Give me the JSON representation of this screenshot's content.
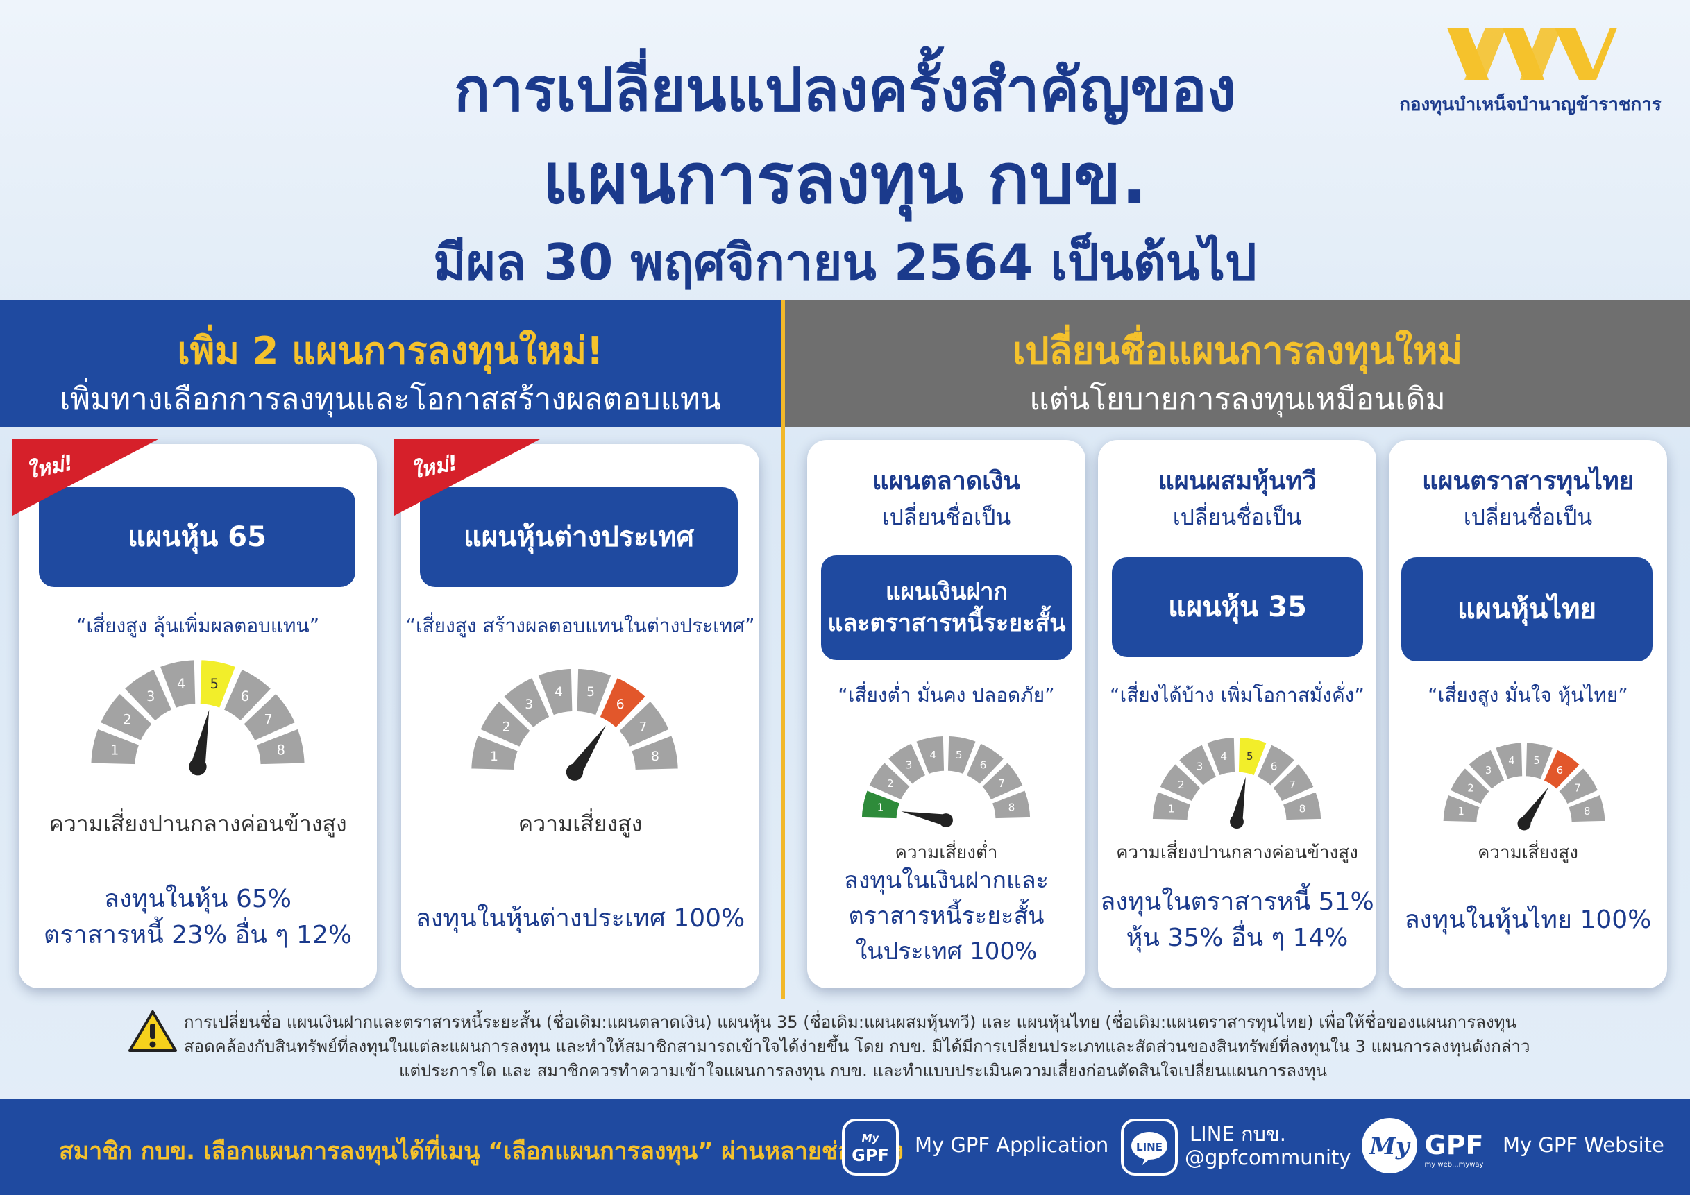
{
  "header": {
    "title_line1": "การเปลี่ยนแปลงครั้งสำคัญของ",
    "title_line2": "แผนการลงทุน กบข.",
    "title_line3": "มีผล 30 พฤศจิกายน 2564 เป็นต้นไป",
    "logo_text": "กองทุนบำเหน็จบำนาญข้าราชการ"
  },
  "left_section": {
    "heading": "เพิ่ม 2 แผนการลงทุนใหม่!",
    "subheading": "เพิ่มทางเลือกการลงทุนและโอกาสสร้างผลตอบแทน"
  },
  "right_section": {
    "heading": "เปลี่ยนชื่อแผนการลงทุนใหม่",
    "subheading": "แต่นโยบายการลงทุนเหมือนเดิม"
  },
  "new_badge": "ใหม่!",
  "rename_subtitle": "เปลี่ยนชื่อเป็น",
  "gauge_levels": [
    "1",
    "2",
    "3",
    "4",
    "5",
    "6",
    "7",
    "8"
  ],
  "colors": {
    "primary": "#1f4aa0",
    "accent": "#f5c22c",
    "gray_band": "#6f6f6f",
    "level_low": "#2e8b3a",
    "level_mid": "#f2ee2a",
    "level_high": "#e2572b",
    "ribbon": "#d6202a"
  },
  "new_plans": [
    {
      "name": "แผนหุ้น 65",
      "quote": "“เสี่ยงสูง ลุ้นเพิ่มผลตอบแทน”",
      "risk_level": 5,
      "risk_label": "ความเสี่ยงปานกลางค่อนข้างสูง",
      "allocation": [
        "ลงทุนในหุ้น 65%",
        "ตราสารหนี้ 23% อื่น ๆ 12%"
      ]
    },
    {
      "name": "แผนหุ้นต่างประเทศ",
      "quote": "“เสี่ยงสูง สร้างผลตอบแทนในต่างประเทศ”",
      "risk_level": 6,
      "risk_label": "ความเสี่ยงสูง",
      "allocation": [
        "ลงทุนในหุ้นต่างประเทศ 100%"
      ]
    }
  ],
  "renamed_plans": [
    {
      "old_name": "แผนตลาดเงิน",
      "new_name": [
        "แผนเงินฝาก",
        "และตราสารหนี้ระยะสั้น"
      ],
      "quote": "“เสี่ยงต่ำ มั่นคง ปลอดภัย”",
      "risk_level": 1,
      "risk_label": "ความเสี่ยงต่ำ",
      "allocation": [
        "ลงทุนในเงินฝากและ",
        "ตราสารหนี้ระยะสั้น",
        "ในประเทศ 100%"
      ]
    },
    {
      "old_name": "แผนผสมหุ้นทวี",
      "new_name": [
        "แผนหุ้น 35"
      ],
      "quote": "“เสี่ยงได้บ้าง เพิ่มโอกาสมั่งคั่ง”",
      "risk_level": 5,
      "risk_label": "ความเสี่ยงปานกลางค่อนข้างสูง",
      "allocation": [
        "ลงทุนในตราสารหนี้ 51%",
        "หุ้น 35% อื่น ๆ 14%"
      ]
    },
    {
      "old_name": "แผนตราสารทุนไทย",
      "new_name": [
        "แผนหุ้นไทย"
      ],
      "quote": "“เสี่ยงสูง มั่นใจ หุ้นไทย”",
      "risk_level": 6,
      "risk_label": "ความเสี่ยงสูง",
      "allocation": [
        "ลงทุนในหุ้นไทย 100%"
      ]
    }
  ],
  "notice": [
    "การเปลี่ยนชื่อ แผนเงินฝากและตราสารหนี้ระยะสั้น (ชื่อเดิม:แผนตลาดเงิน) แผนหุ้น 35 (ชื่อเดิม:แผนผสมหุ้นทวี) และ แผนหุ้นไทย (ชื่อเดิม:แผนตราสารทุนไทย) เพื่อให้ชื่อของแผนการลงทุน",
    "สอดคล้องกับสินทรัพย์ที่ลงทุนในแต่ละแผนการลงทุน และทำให้สมาชิกสามารถเข้าใจได้ง่ายขึ้น โดย กบข. มิได้มีการเปลี่ยนประเภทและสัดส่วนของสินทรัพย์ที่ลงทุนใน 3 แผนการลงทุนดังกล่าว",
    "แต่ประการใด และ สมาชิกควรทำความเข้าใจแผนการลงทุน กบข.  และทำแบบประเมินความเสี่ยงก่อนตัดสินใจเปลี่ยนแผนการลงทุน"
  ],
  "footer": {
    "message": "สมาชิก กบข. เลือกแผนการลงทุนได้ที่เมนู “เลือกแผนการลงทุน” ผ่านหลายช่องทาง",
    "app_icon_text": "GPF",
    "app_icon_my": "My",
    "app_label": "My GPF Application",
    "line_icon_text": "LINE",
    "line_label1": "LINE กบข.",
    "line_label2": "@gpfcommunity",
    "web_logo_my": "My",
    "web_logo_gpf": "GPF",
    "web_logo_tag": "my web...myway",
    "web_label": "My GPF Website"
  }
}
